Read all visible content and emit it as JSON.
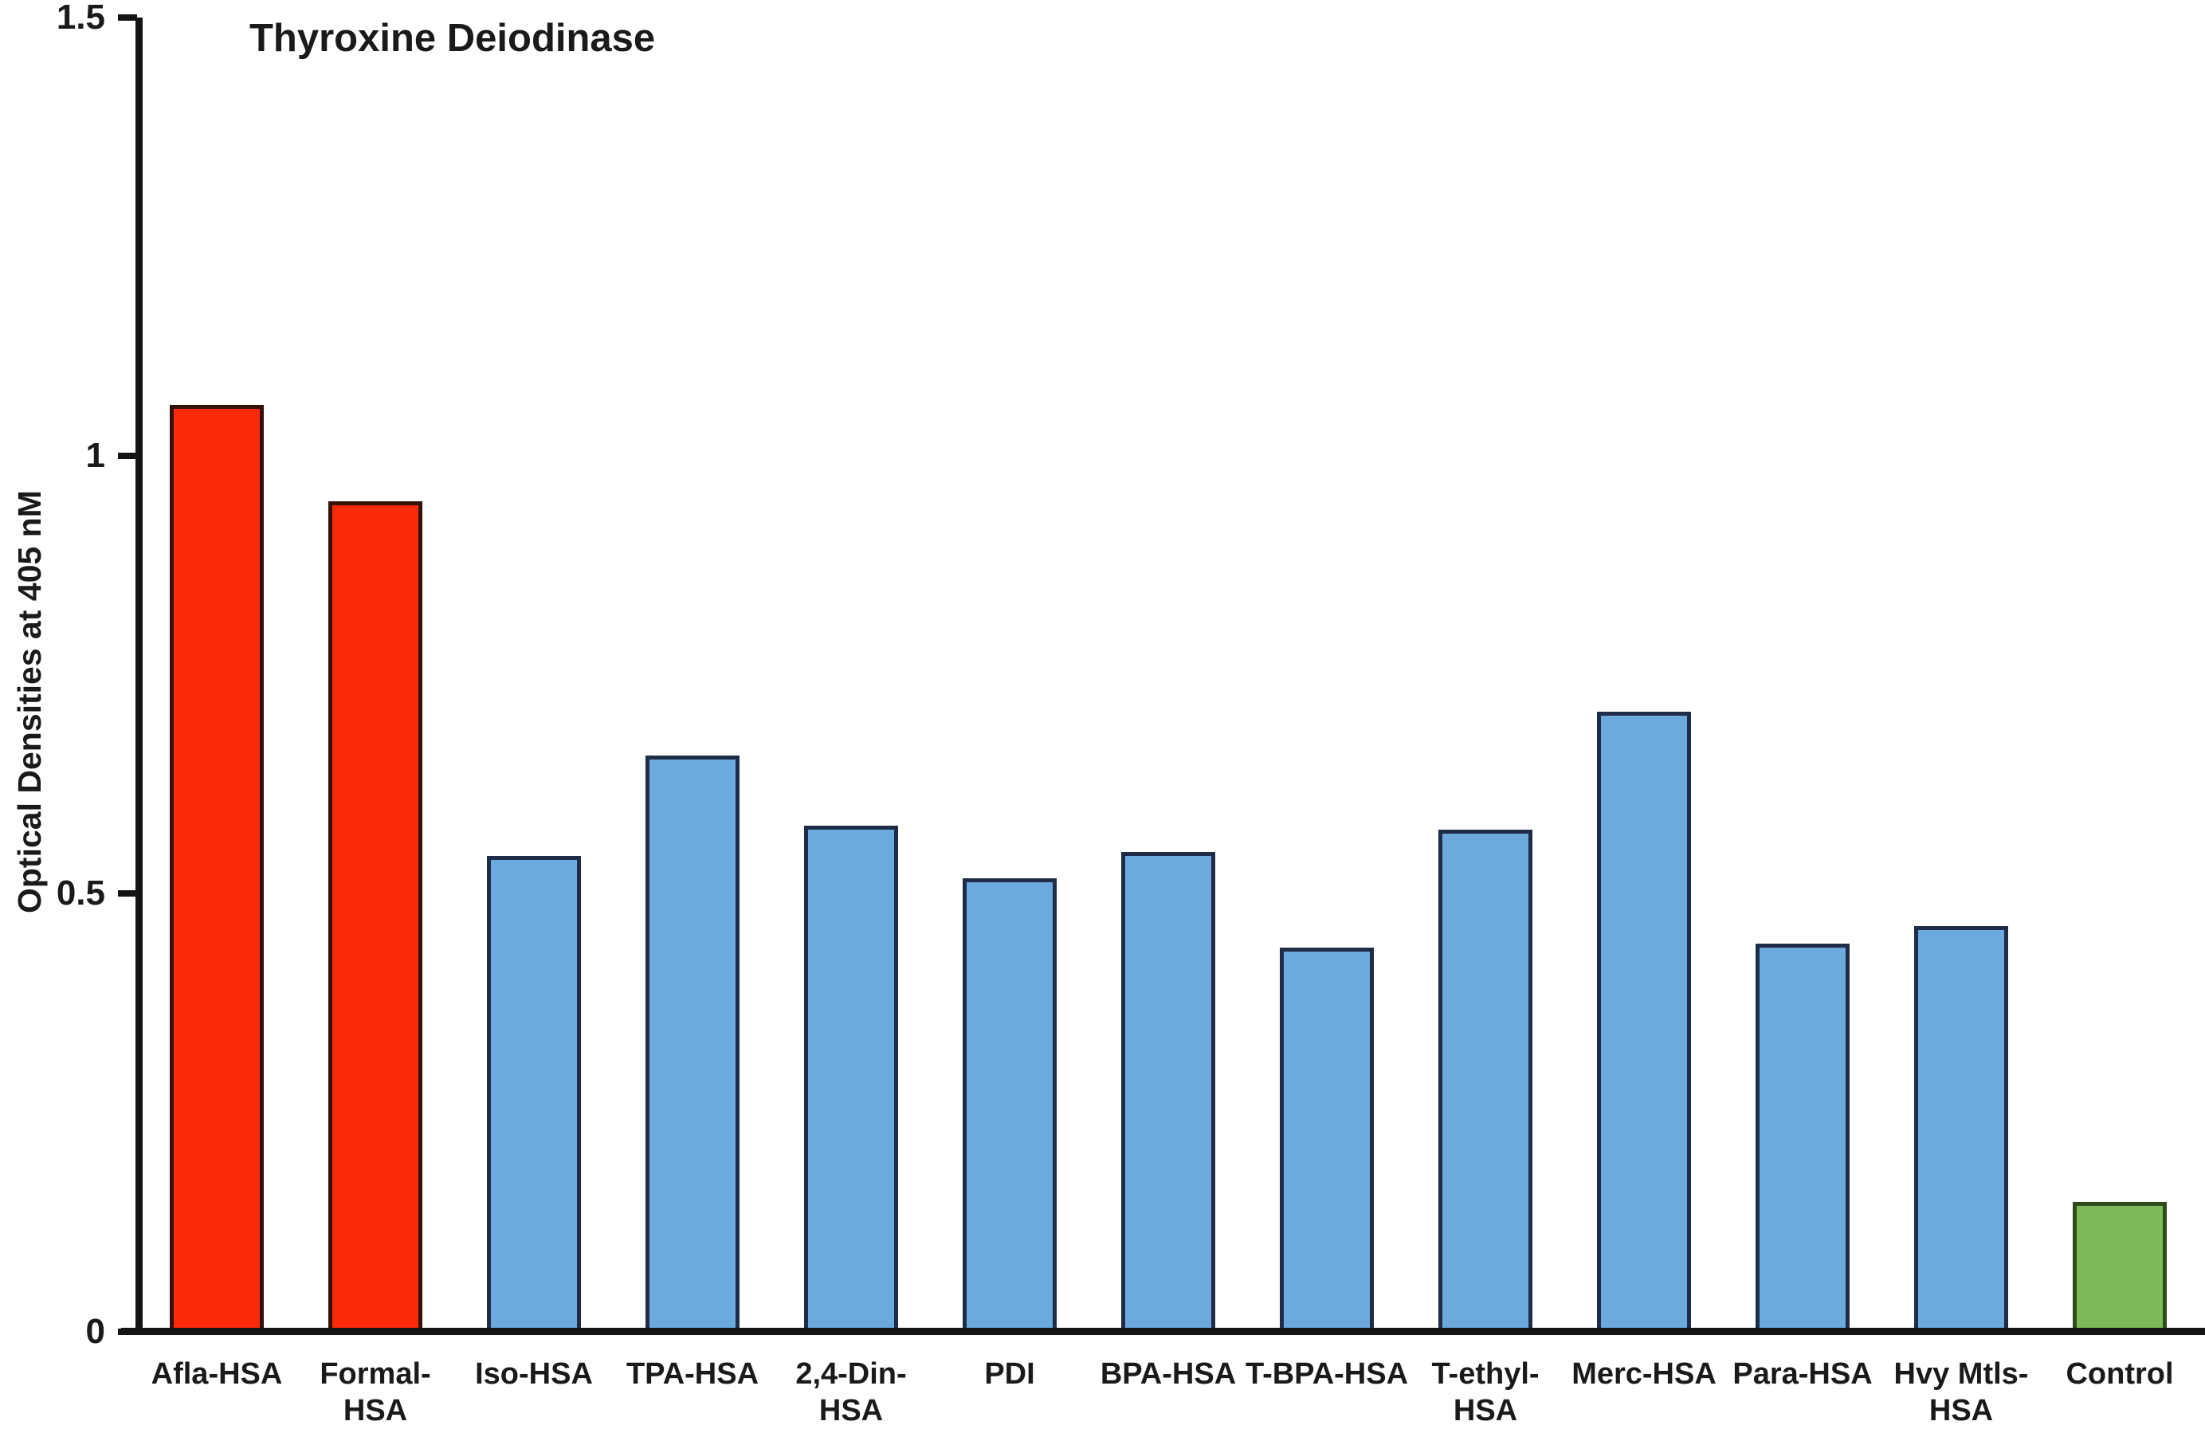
{
  "page": {
    "background_color": "#ffffff",
    "axis_color": "#141414",
    "text_color": "#1a1a1a"
  },
  "chart_data": {
    "type": "bar",
    "title": "Thyroxine Deiodinase",
    "xlabel": "",
    "ylabel": "Optical Densities at 405 nM",
    "ylim": [
      0,
      1.5
    ],
    "yticks": [
      0,
      0.5,
      1,
      1.5
    ],
    "ytick_labels": [
      "0",
      "0.5",
      "1",
      "1.5"
    ],
    "grid": false,
    "legend": "none",
    "categories": [
      "Afla-HSA",
      "Formal-HSA",
      "Iso-HSA",
      "TPA-HSA",
      "2,4-Din-HSA",
      "PDI",
      "BPA-HSA",
      "T-BPA-HSA",
      "T-ethyl-HSA",
      "Merc-HSA",
      "Para-HSA",
      "Hvy Mtls-HSA",
      "Control"
    ],
    "display_labels": [
      "Afla-HSA",
      "Formal-HSA",
      "Iso-HSA",
      "TPA-HSA",
      "2,4-Din-HSA",
      "PDI",
      "BPA-HSA",
      "T-BPA-HSA",
      "T-ethyl-HSA",
      "Merc-HSA",
      "Para-HSA",
      "Hvy Mtls-\nHSA",
      "Control"
    ],
    "values": [
      1.06,
      0.95,
      0.545,
      0.66,
      0.58,
      0.52,
      0.55,
      0.44,
      0.575,
      0.71,
      0.445,
      0.465,
      0.15
    ],
    "bar_fill_colors": [
      "#fb2a0a",
      "#fb2a0a",
      "#6ca9dd",
      "#6ca9dd",
      "#6ca9dd",
      "#6ca9dd",
      "#6ca9dd",
      "#6ca9dd",
      "#6ca9dd",
      "#6ca9dd",
      "#6ca9dd",
      "#6ca9dd",
      "#7cba59"
    ],
    "bar_border_colors": [
      "#34120a",
      "#34120a",
      "#1e2c47",
      "#1e2c47",
      "#1e2c47",
      "#1e2c47",
      "#1e2c47",
      "#1e2c47",
      "#1e2c47",
      "#1e2c47",
      "#1e2c47",
      "#1e2c47",
      "#2f4a1e"
    ],
    "color_legend": {
      "red": "#fb2a0a",
      "blue": "#6ca9dd",
      "green": "#7cba59"
    }
  }
}
